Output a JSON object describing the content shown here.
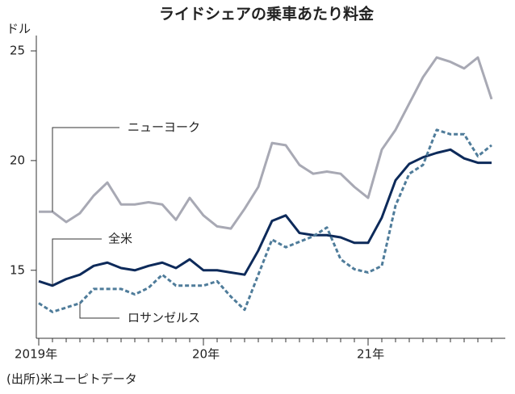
{
  "chart_data": {
    "type": "line",
    "title": "ライドシェアの乗車あたり料金",
    "y_label": "ドル",
    "source": "(出所)米ユーピトデータ",
    "categories": [
      "2019年",
      null,
      null,
      null,
      null,
      null,
      null,
      null,
      null,
      null,
      null,
      null,
      "20年",
      null,
      null,
      null,
      null,
      null,
      null,
      null,
      null,
      null,
      null,
      null,
      "21年",
      null,
      null,
      null,
      null,
      null,
      null,
      null,
      null,
      null
    ],
    "ylim": [
      11.9,
      25.7
    ],
    "yticks": [
      15,
      20,
      25
    ],
    "series": [
      {
        "name": "ニューヨーク",
        "color": "#a8a9b4",
        "dashed": false,
        "values": [
          17.67,
          17.67,
          17.2,
          17.6,
          18.4,
          19.0,
          18.0,
          18.0,
          18.1,
          18.0,
          17.3,
          18.3,
          17.5,
          17.0,
          16.9,
          17.8,
          18.8,
          20.8,
          20.7,
          19.8,
          19.4,
          19.5,
          19.4,
          18.8,
          18.3,
          20.5,
          21.4,
          22.6,
          23.8,
          24.7,
          24.5,
          24.2,
          24.7,
          22.8
        ]
      },
      {
        "name": "全米",
        "color": "#0d2a5a",
        "dashed": false,
        "values": [
          14.5,
          14.3,
          14.6,
          14.8,
          15.2,
          15.35,
          15.1,
          15.0,
          15.2,
          15.35,
          15.1,
          15.5,
          15.0,
          15.0,
          14.9,
          14.8,
          15.9,
          17.25,
          17.5,
          16.7,
          16.6,
          16.6,
          16.5,
          16.25,
          16.25,
          17.4,
          19.1,
          19.85,
          20.15,
          20.35,
          20.5,
          20.1,
          19.9,
          19.9
        ]
      },
      {
        "name": "ロサンゼルス",
        "color": "#4f7c9a",
        "dashed": true,
        "values": [
          13.5,
          13.1,
          13.3,
          13.5,
          14.15,
          14.15,
          14.15,
          13.9,
          14.2,
          14.8,
          14.3,
          14.3,
          14.3,
          14.5,
          13.8,
          13.2,
          14.8,
          16.4,
          16.05,
          16.3,
          16.55,
          16.95,
          15.5,
          15.05,
          14.9,
          15.2,
          17.95,
          19.4,
          19.8,
          21.4,
          21.2,
          21.2,
          20.2,
          20.7
        ]
      }
    ]
  }
}
